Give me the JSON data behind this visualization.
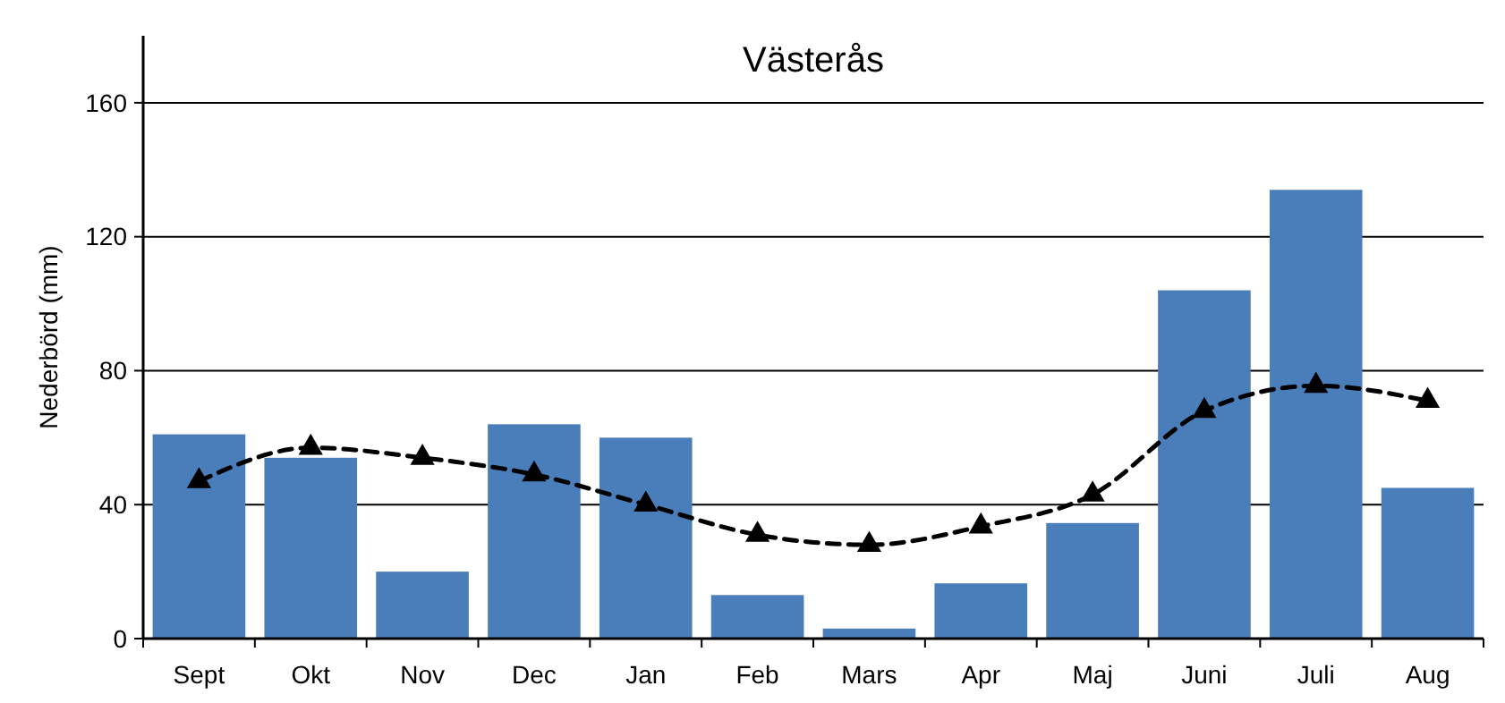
{
  "chart_data": {
    "type": "bar",
    "title": "Västerås",
    "ylabel": "Nederbörd (mm)",
    "categories": [
      "Sept",
      "Okt",
      "Nov",
      "Dec",
      "Jan",
      "Feb",
      "Mars",
      "Apr",
      "Maj",
      "Juni",
      "Juli",
      "Aug"
    ],
    "series": [
      {
        "color": "#4a7ebb",
        "values": [
          61,
          54,
          20,
          64,
          60,
          13,
          3,
          16.5,
          34.5,
          104,
          134,
          45
        ]
      },
      {
        "type": "line",
        "color": "#000000",
        "marker": "triangle",
        "line_style": "dashed",
        "values": [
          47,
          57,
          54,
          49,
          40,
          31,
          28,
          33.5,
          43,
          68,
          75.5,
          71
        ]
      }
    ],
    "ylim": [
      0,
      180
    ],
    "yticks": [
      0,
      40,
      80,
      120,
      160
    ],
    "grid": "y"
  }
}
